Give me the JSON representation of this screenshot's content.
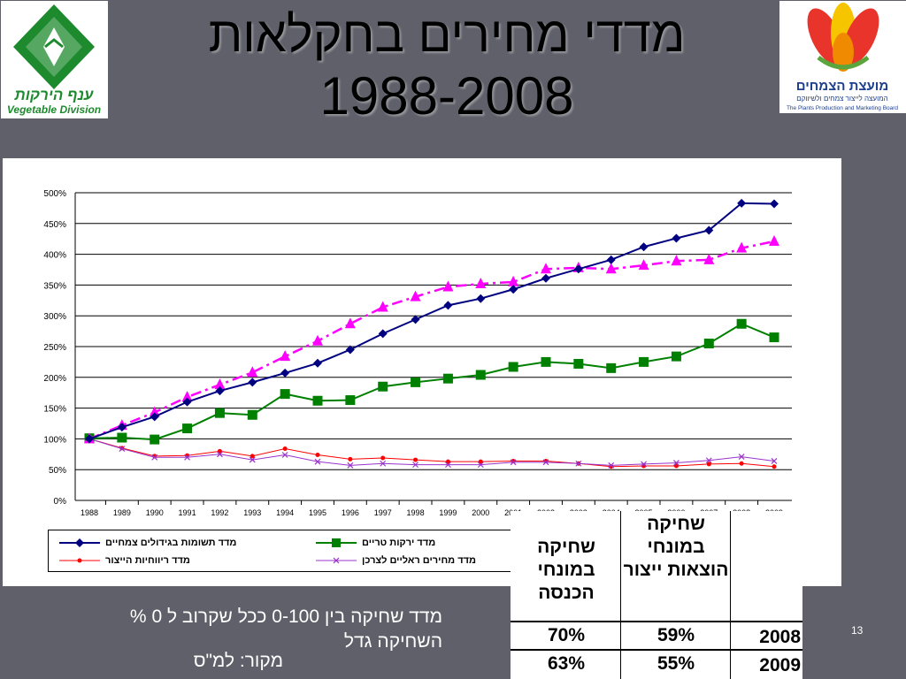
{
  "slide": {
    "title_line1": "מדדי מחירים בחקלאות",
    "title_line2": "1988-2008",
    "logo_left_text": "ענף הירקות",
    "logo_left_text_en": "Vegetable Division",
    "logo_right_text": "מועצת הצמחים",
    "logo_right_sub": "המועצה לייצור צמחים ולשיווקם",
    "logo_right_en": "The Plants Production and Marketing Board",
    "note": "מדד שחיקה בין 0-100 ככל שקרוב ל 0 % השחיקה גדל",
    "source": "מקור: למ\"ס",
    "page_number": "13"
  },
  "colors": {
    "background": "#5f6069",
    "series_navy": "#000080",
    "series_green": "#008000",
    "series_magenta": "#ff00ff",
    "series_red": "#ff0000",
    "series_purple": "#9933cc"
  },
  "table": {
    "headers": [
      "שחיקה במונחי הכנסה",
      "שחיקה במונחי הוצאות ייצור",
      ""
    ],
    "rows": [
      [
        "70%",
        "59%",
        "2008"
      ],
      [
        "63%",
        "55%",
        "2009"
      ]
    ]
  },
  "chart_data": {
    "type": "line",
    "x": [
      "1988",
      "1989",
      "1990",
      "1991",
      "1992",
      "1993",
      "1994",
      "1995",
      "1996",
      "1997",
      "1998",
      "1999",
      "2000",
      "2001",
      "2002",
      "2003",
      "2004",
      "2005",
      "2006",
      "2007",
      "2008",
      "2009"
    ],
    "ylim": [
      0,
      500
    ],
    "y_ticks": [
      "0%",
      "50%",
      "100%",
      "150%",
      "200%",
      "250%",
      "300%",
      "350%",
      "400%",
      "450%",
      "500%"
    ],
    "grid": true,
    "legend_position": "bottom",
    "series": [
      {
        "name": "מדד תשומות בגידולים צמחיים",
        "color": "#000080",
        "marker": "diamond",
        "values": [
          100,
          119,
          136,
          160,
          178,
          192,
          207,
          223,
          245,
          271,
          294,
          317,
          328,
          343,
          361,
          376,
          391,
          412,
          426,
          439,
          483,
          482
        ]
      },
      {
        "name": "מדד ירקות טריים",
        "color": "#008000",
        "marker": "square",
        "values": [
          101,
          102,
          99,
          117,
          142,
          139,
          173,
          162,
          163,
          185,
          192,
          198,
          204,
          217,
          225,
          222,
          215,
          225,
          234,
          255,
          287,
          265
        ]
      },
      {
        "name": "",
        "color": "#ff00ff",
        "marker": "triangle",
        "dashed": true,
        "values": [
          100,
          122,
          143,
          168,
          188,
          208,
          234,
          259,
          287,
          314,
          331,
          347,
          352,
          355,
          376,
          378,
          376,
          382,
          389,
          391,
          410,
          421
        ]
      },
      {
        "name": "מדד ריווחיות הייצור",
        "color": "#ff0000",
        "marker": "dot",
        "values": [
          100,
          85,
          72,
          73,
          80,
          72,
          84,
          74,
          67,
          69,
          66,
          63,
          63,
          64,
          64,
          60,
          55,
          56,
          56,
          59,
          60,
          55
        ]
      },
      {
        "name": "מדד מחירים ראליים לצרכן",
        "color": "#9933cc",
        "marker": "x",
        "values": [
          100,
          84,
          70,
          70,
          75,
          66,
          74,
          63,
          57,
          60,
          58,
          58,
          58,
          62,
          62,
          60,
          57,
          59,
          61,
          65,
          71,
          64
        ]
      }
    ]
  }
}
